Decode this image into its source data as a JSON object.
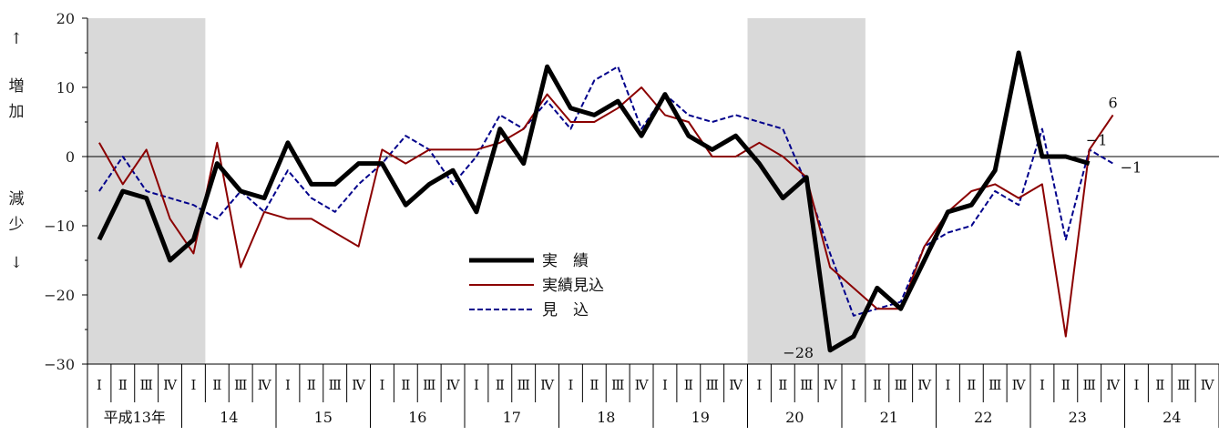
{
  "chart_data": {
    "type": "line",
    "ylim": [
      -30,
      20
    ],
    "yticks": [
      20,
      10,
      0,
      -10,
      -20,
      -30
    ],
    "ytick_labels": [
      "20",
      "10",
      "0",
      "−10",
      "−20",
      "−30"
    ],
    "ylabel_up": [
      "↑",
      "増",
      "加"
    ],
    "ylabel_down": [
      "減",
      "少",
      "↓"
    ],
    "quarter_labels": [
      "Ⅰ",
      "Ⅱ",
      "Ⅲ",
      "Ⅳ"
    ],
    "years": [
      "平成13年",
      "14",
      "15",
      "16",
      "17",
      "18",
      "19",
      "20",
      "21",
      "22",
      "23",
      "24"
    ],
    "recession_shading": [
      {
        "from_quarter": 0,
        "to_quarter": 5
      },
      {
        "from_quarter": 28,
        "to_quarter": 33
      }
    ],
    "series": [
      {
        "name": "実　績",
        "color": "#000000",
        "style": "solid-thick",
        "values": [
          -12,
          -5,
          -6,
          -15,
          -12,
          -1,
          -5,
          -6,
          2,
          -4,
          -4,
          -1,
          -1,
          -7,
          -4,
          -2,
          -8,
          4,
          -1,
          13,
          7,
          6,
          8,
          3,
          9,
          3,
          1,
          3,
          -1,
          -6,
          -3,
          -28,
          -26,
          -19,
          -22,
          -15,
          -8,
          -7,
          -2,
          15,
          0,
          0,
          -1
        ]
      },
      {
        "name": "実績見込",
        "color": "#8b0000",
        "style": "solid",
        "values": [
          2,
          -4,
          1,
          -9,
          -14,
          2,
          -16,
          -8,
          -9,
          -9,
          -11,
          -13,
          1,
          -1,
          1,
          1,
          1,
          2,
          4,
          9,
          5,
          5,
          7,
          10,
          6,
          5,
          0,
          0,
          2,
          0,
          -3,
          -16,
          -19,
          -22,
          -22,
          -13,
          -8,
          -5,
          -4,
          -6,
          -4,
          -26,
          1,
          6
        ]
      },
      {
        "name": "見　込",
        "color": "#00008b",
        "style": "dashed",
        "values": [
          -5,
          0,
          -5,
          -6,
          -7,
          -9,
          -5,
          -8,
          -2,
          -6,
          -8,
          -4,
          -1,
          3,
          1,
          -4,
          0,
          6,
          4,
          8,
          4,
          11,
          13,
          4,
          9,
          6,
          5,
          6,
          5,
          4,
          -4,
          -14,
          -23,
          -22,
          -21,
          -13,
          -11,
          -10,
          -5,
          -7,
          4,
          -12,
          1,
          -1
        ]
      }
    ],
    "annotations": [
      {
        "text": "−28",
        "series": 0,
        "index": 31
      },
      {
        "text": "6",
        "series": 1,
        "index": 43
      },
      {
        "text": "−1",
        "series": 0,
        "index": 42
      },
      {
        "text": "−1",
        "series": 2,
        "index": 43
      }
    ],
    "legend_position": "center",
    "grid": false
  }
}
